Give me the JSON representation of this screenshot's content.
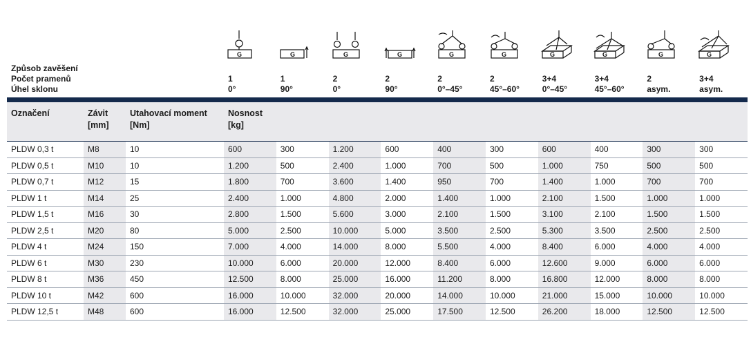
{
  "header": {
    "row_labels": [
      "Způsob zavěšení",
      "Počet pramenů",
      "Úhel sklonu"
    ],
    "methods": [
      {
        "icon": "sling-single-vertical-icon",
        "strands": "1",
        "angle": "0°"
      },
      {
        "icon": "sling-single-side-icon",
        "strands": "1",
        "angle": "90°"
      },
      {
        "icon": "sling-two-vertical-icon",
        "strands": "2",
        "angle": "0°"
      },
      {
        "icon": "sling-two-side-icon",
        "strands": "2",
        "angle": "90°"
      },
      {
        "icon": "sling-two-angled-icon",
        "strands": "2",
        "angle": "0°–45°"
      },
      {
        "icon": "sling-two-angled-wide-icon",
        "strands": "2",
        "angle": "45°–60°"
      },
      {
        "icon": "sling-four-leg-icon",
        "strands": "3+4",
        "angle": "0°–45°"
      },
      {
        "icon": "sling-four-leg-wide-icon",
        "strands": "3+4",
        "angle": "45°–60°"
      },
      {
        "icon": "sling-two-asym-icon",
        "strands": "2",
        "angle": "asym."
      },
      {
        "icon": "sling-four-asym-icon",
        "strands": "3+4",
        "angle": "asym."
      }
    ]
  },
  "columns": {
    "designation": "Označení",
    "thread": [
      "Závit",
      "[mm]"
    ],
    "torque": [
      "Utahovací moment",
      "[Nm]"
    ],
    "capacity": [
      "Nosnost",
      "[kg]"
    ]
  },
  "rows": [
    {
      "name": "PLDW 0,3 t",
      "thread": "M8",
      "torque": "10",
      "loads": [
        "600",
        "300",
        "1.200",
        "600",
        "400",
        "300",
        "600",
        "400",
        "300",
        "300"
      ]
    },
    {
      "name": "PLDW 0,5 t",
      "thread": "M10",
      "torque": "10",
      "loads": [
        "1.200",
        "500",
        "2.400",
        "1.000",
        "700",
        "500",
        "1.000",
        "750",
        "500",
        "500"
      ]
    },
    {
      "name": "PLDW 0,7 t",
      "thread": "M12",
      "torque": "15",
      "loads": [
        "1.800",
        "700",
        "3.600",
        "1.400",
        "950",
        "700",
        "1.400",
        "1.000",
        "700",
        "700"
      ]
    },
    {
      "name": "PLDW 1 t",
      "thread": "M14",
      "torque": "25",
      "loads": [
        "2.400",
        "1.000",
        "4.800",
        "2.000",
        "1.400",
        "1.000",
        "2.100",
        "1.500",
        "1.000",
        "1.000"
      ]
    },
    {
      "name": "PLDW 1,5 t",
      "thread": "M16",
      "torque": "30",
      "loads": [
        "2.800",
        "1.500",
        "5.600",
        "3.000",
        "2.100",
        "1.500",
        "3.100",
        "2.100",
        "1.500",
        "1.500"
      ]
    },
    {
      "name": "PLDW 2,5 t",
      "thread": "M20",
      "torque": "80",
      "loads": [
        "5.000",
        "2.500",
        "10.000",
        "5.000",
        "3.500",
        "2.500",
        "5.300",
        "3.500",
        "2.500",
        "2.500"
      ]
    },
    {
      "name": "PLDW 4 t",
      "thread": "M24",
      "torque": "150",
      "loads": [
        "7.000",
        "4.000",
        "14.000",
        "8.000",
        "5.500",
        "4.000",
        "8.400",
        "6.000",
        "4.000",
        "4.000"
      ]
    },
    {
      "name": "PLDW 6 t",
      "thread": "M30",
      "torque": "230",
      "loads": [
        "10.000",
        "6.000",
        "20.000",
        "12.000",
        "8.400",
        "6.000",
        "12.600",
        "9.000",
        "6.000",
        "6.000"
      ]
    },
    {
      "name": "PLDW 8 t",
      "thread": "M36",
      "torque": "450",
      "loads": [
        "12.500",
        "8.000",
        "25.000",
        "16.000",
        "11.200",
        "8.000",
        "16.800",
        "12.000",
        "8.000",
        "8.000"
      ]
    },
    {
      "name": "PLDW 10 t",
      "thread": "M42",
      "torque": "600",
      "loads": [
        "16.000",
        "10.000",
        "32.000",
        "20.000",
        "14.000",
        "10.000",
        "21.000",
        "15.000",
        "10.000",
        "10.000"
      ]
    },
    {
      "name": "PLDW 12,5 t",
      "thread": "M48",
      "torque": "600",
      "loads": [
        "16.000",
        "12.500",
        "32.000",
        "25.000",
        "17.500",
        "12.500",
        "26.200",
        "18.000",
        "12.500",
        "12.500"
      ]
    }
  ],
  "icon_letters": {
    "box_letter": "G",
    "plate_letter": "G"
  }
}
